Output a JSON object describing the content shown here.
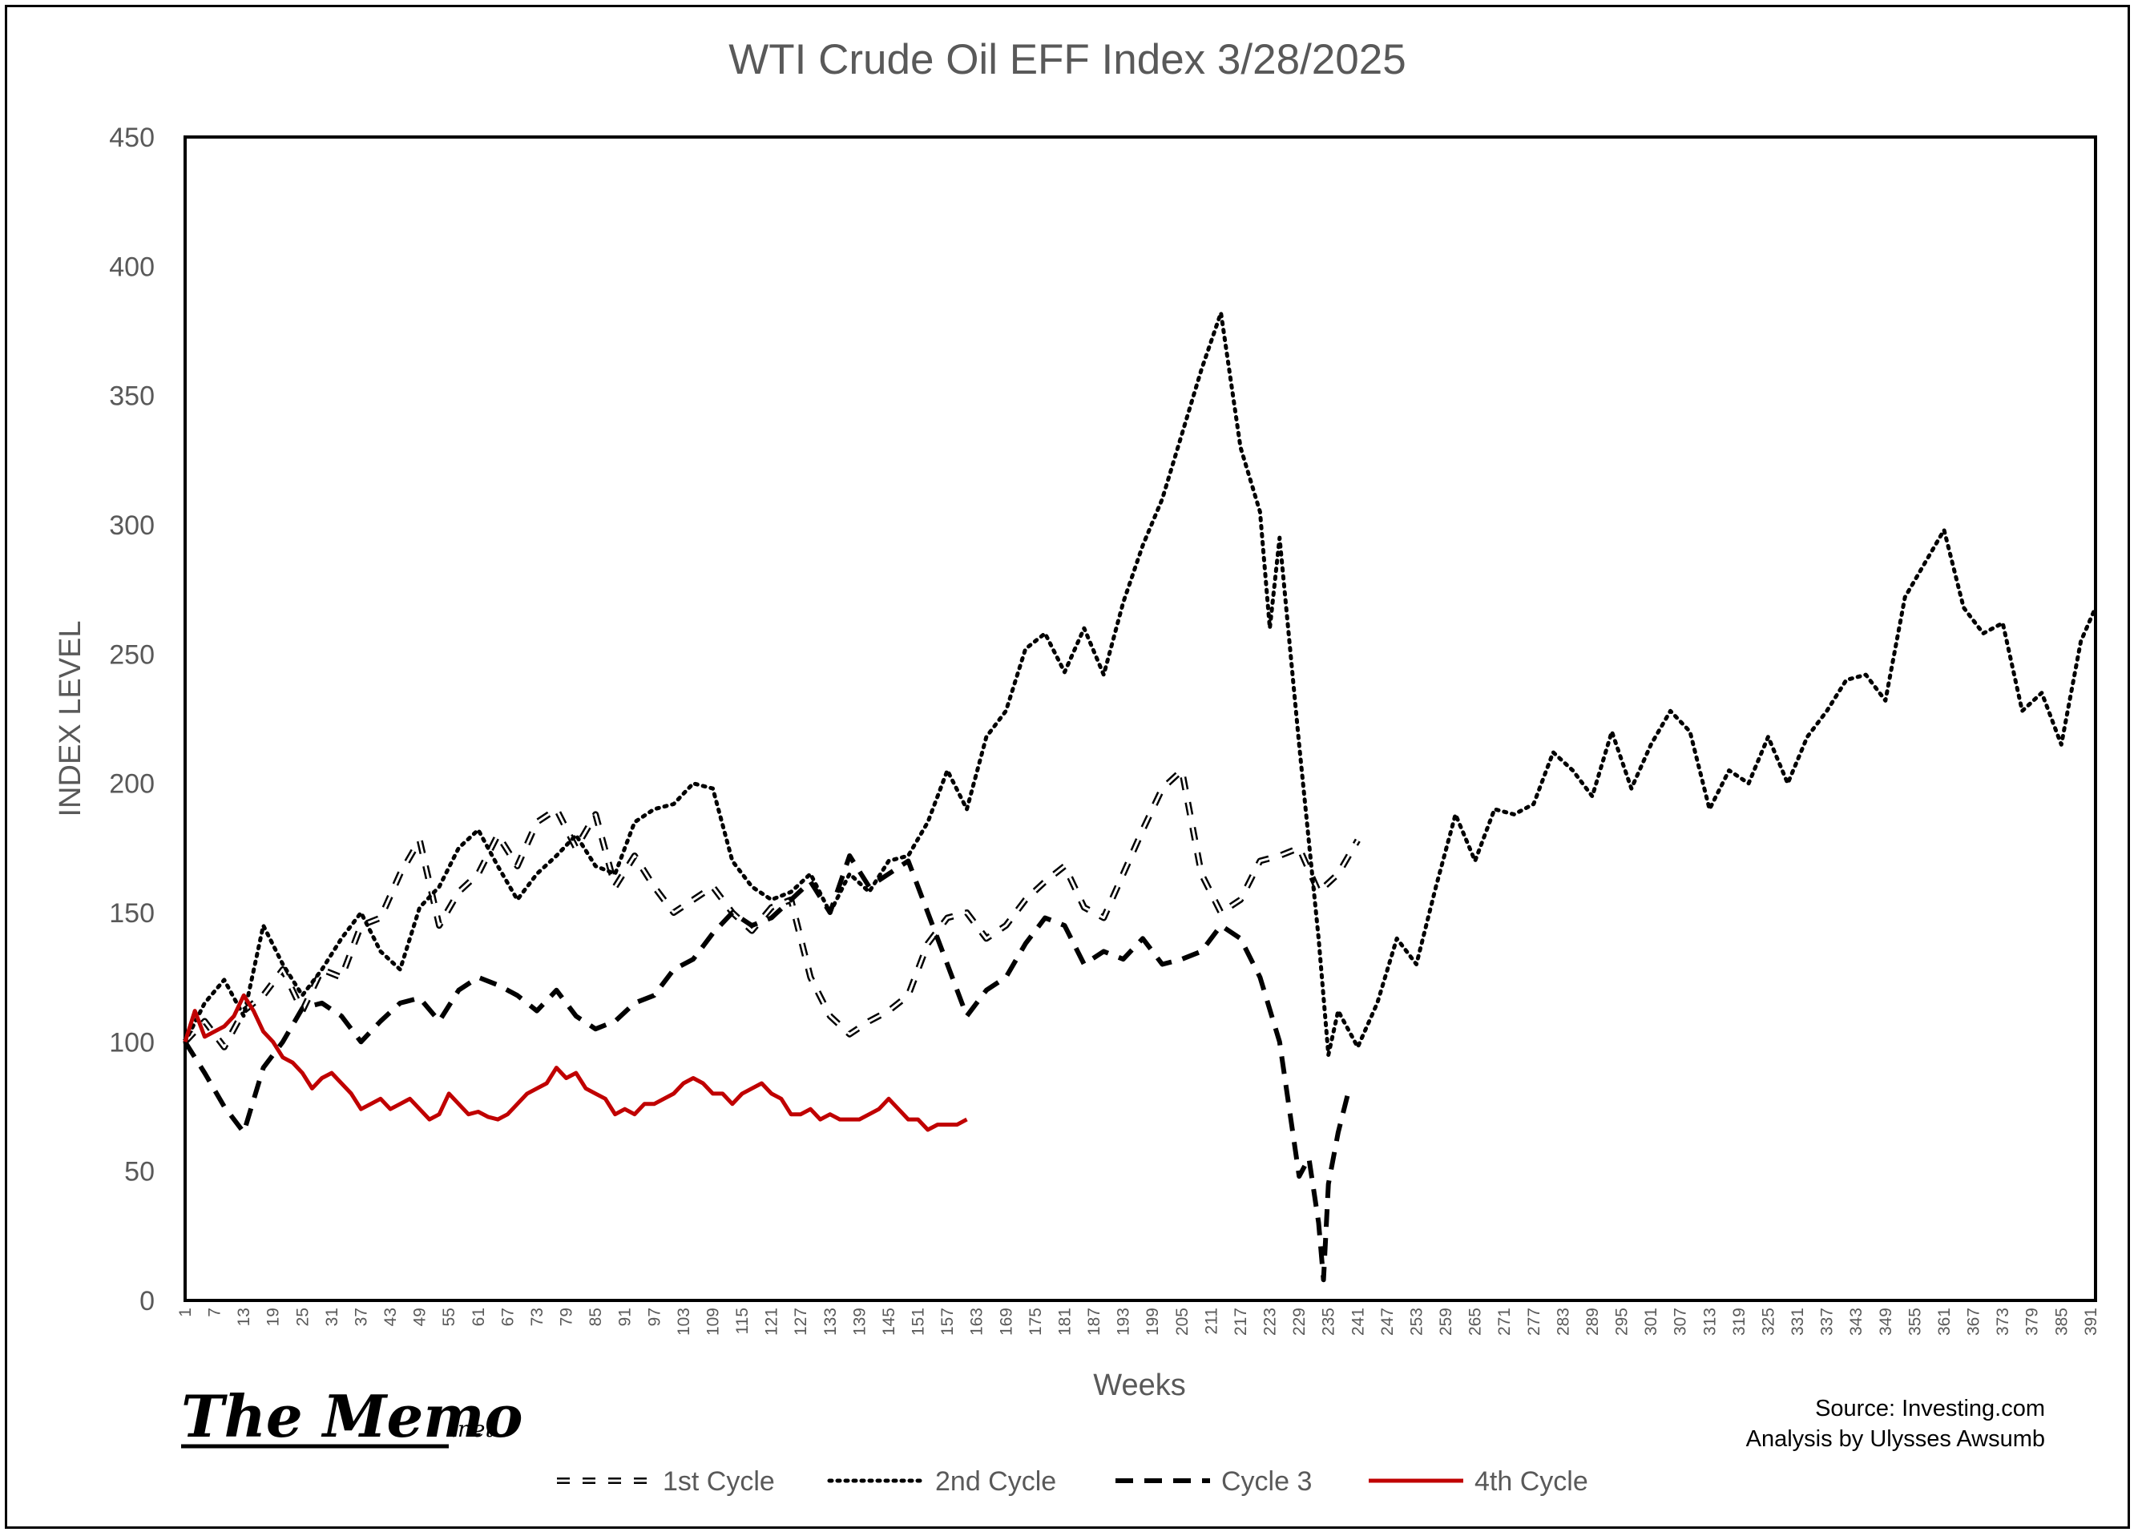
{
  "chart_data": {
    "type": "line",
    "title": "WTI Crude Oil EFF Index 3/28/2025",
    "xlabel": "Weeks",
    "ylabel": "INDEX LEVEL",
    "ylim": [
      0,
      450
    ],
    "xlim": [
      1,
      392
    ],
    "yticks": [
      0,
      50,
      100,
      150,
      200,
      250,
      300,
      350,
      400,
      450
    ],
    "xticks_start": 1,
    "xticks_step": 6,
    "xticks_end": 391,
    "grid": false,
    "legend_position": "bottom",
    "series": [
      {
        "name": "1st Cycle",
        "style": "double-dash",
        "color": "#000000",
        "x": [
          1,
          5,
          9,
          13,
          17,
          21,
          25,
          29,
          33,
          37,
          41,
          45,
          49,
          53,
          57,
          61,
          65,
          69,
          73,
          77,
          81,
          85,
          89,
          93,
          97,
          101,
          105,
          109,
          113,
          117,
          121,
          125,
          129,
          133,
          137,
          141,
          145,
          149,
          153,
          157,
          161,
          165,
          169,
          173,
          177,
          181,
          185,
          189,
          193,
          197,
          201,
          205,
          209,
          213,
          217,
          221,
          225,
          229,
          233,
          237,
          241
        ],
        "y": [
          100,
          108,
          98,
          112,
          118,
          128,
          112,
          128,
          125,
          145,
          148,
          165,
          178,
          145,
          158,
          165,
          180,
          168,
          185,
          190,
          175,
          188,
          160,
          172,
          160,
          150,
          155,
          160,
          150,
          143,
          152,
          155,
          125,
          110,
          103,
          108,
          112,
          118,
          138,
          148,
          150,
          140,
          145,
          155,
          162,
          168,
          152,
          148,
          165,
          182,
          198,
          205,
          165,
          150,
          155,
          170,
          172,
          175,
          158,
          165,
          178
        ]
      },
      {
        "name": "2nd Cycle",
        "style": "dotted",
        "color": "#000000",
        "x": [
          1,
          5,
          9,
          13,
          17,
          21,
          25,
          29,
          33,
          37,
          41,
          45,
          49,
          53,
          57,
          61,
          65,
          69,
          73,
          77,
          81,
          85,
          89,
          93,
          97,
          101,
          105,
          109,
          113,
          117,
          121,
          125,
          129,
          133,
          137,
          141,
          145,
          149,
          153,
          157,
          161,
          165,
          169,
          173,
          177,
          181,
          185,
          189,
          193,
          197,
          201,
          205,
          209,
          213,
          217,
          221,
          223,
          225,
          229,
          233,
          235,
          237,
          241,
          245,
          249,
          253,
          257,
          261,
          265,
          269,
          273,
          277,
          281,
          285,
          289,
          293,
          297,
          301,
          305,
          309,
          313,
          317,
          321,
          325,
          329,
          333,
          337,
          341,
          345,
          349,
          353,
          357,
          361,
          365,
          369,
          373,
          377,
          381,
          385,
          389,
          392
        ],
        "y": [
          100,
          115,
          124,
          110,
          145,
          130,
          118,
          128,
          140,
          150,
          135,
          128,
          152,
          160,
          175,
          182,
          168,
          155,
          165,
          172,
          180,
          168,
          165,
          185,
          190,
          192,
          200,
          198,
          170,
          160,
          155,
          158,
          165,
          150,
          165,
          158,
          170,
          172,
          185,
          205,
          190,
          218,
          228,
          252,
          258,
          243,
          260,
          242,
          270,
          292,
          310,
          335,
          360,
          382,
          330,
          305,
          260,
          295,
          215,
          140,
          95,
          112,
          98,
          115,
          140,
          130,
          160,
          188,
          170,
          190,
          188,
          192,
          212,
          205,
          195,
          220,
          198,
          215,
          228,
          220,
          190,
          205,
          200,
          218,
          200,
          218,
          228,
          240,
          242,
          232,
          272,
          285,
          298,
          268,
          258,
          262,
          228,
          235,
          215,
          255,
          268
        ]
      },
      {
        "name": "Cycle 3",
        "style": "dashed",
        "color": "#000000",
        "x": [
          1,
          5,
          9,
          13,
          17,
          21,
          25,
          29,
          33,
          37,
          41,
          45,
          49,
          53,
          57,
          61,
          65,
          69,
          73,
          77,
          81,
          85,
          89,
          93,
          97,
          101,
          105,
          109,
          113,
          117,
          121,
          125,
          129,
          133,
          137,
          141,
          145,
          149,
          153,
          157,
          161,
          165,
          169,
          173,
          177,
          181,
          185,
          189,
          193,
          197,
          201,
          205,
          209,
          213,
          217,
          221,
          225,
          229,
          231,
          233,
          234,
          235,
          237,
          239
        ],
        "y": [
          100,
          88,
          75,
          65,
          90,
          100,
          113,
          115,
          110,
          100,
          108,
          115,
          117,
          108,
          120,
          125,
          122,
          118,
          112,
          120,
          110,
          105,
          108,
          115,
          118,
          128,
          132,
          142,
          150,
          145,
          148,
          155,
          162,
          150,
          172,
          160,
          165,
          170,
          150,
          130,
          110,
          120,
          125,
          138,
          148,
          145,
          130,
          135,
          132,
          140,
          130,
          132,
          135,
          145,
          140,
          125,
          100,
          48,
          55,
          30,
          8,
          45,
          65,
          80
        ]
      },
      {
        "name": "4th Cycle",
        "style": "solid",
        "color": "#c00000",
        "x": [
          1,
          3,
          5,
          7,
          9,
          11,
          13,
          15,
          17,
          19,
          21,
          23,
          25,
          27,
          29,
          31,
          33,
          35,
          37,
          39,
          41,
          43,
          45,
          47,
          49,
          51,
          53,
          55,
          57,
          59,
          61,
          63,
          65,
          67,
          69,
          71,
          73,
          75,
          77,
          79,
          81,
          83,
          85,
          87,
          89,
          91,
          93,
          95,
          97,
          99,
          101,
          103,
          105,
          107,
          109,
          111,
          113,
          115,
          117,
          119,
          121,
          123,
          125,
          127,
          129,
          131,
          133,
          135,
          137,
          139,
          141,
          143,
          145,
          147,
          149,
          151,
          153,
          155,
          157,
          159,
          161
        ],
        "y": [
          100,
          112,
          102,
          104,
          106,
          110,
          118,
          112,
          104,
          100,
          94,
          92,
          88,
          82,
          86,
          88,
          84,
          80,
          74,
          76,
          78,
          74,
          76,
          78,
          74,
          70,
          72,
          80,
          76,
          72,
          73,
          71,
          70,
          72,
          76,
          80,
          82,
          84,
          90,
          86,
          88,
          82,
          80,
          78,
          72,
          74,
          72,
          76,
          76,
          78,
          80,
          84,
          86,
          84,
          80,
          80,
          76,
          80,
          82,
          84,
          80,
          78,
          72,
          72,
          74,
          70,
          72,
          70,
          70,
          70,
          72,
          74,
          78,
          74,
          70,
          70,
          66,
          68,
          68,
          68,
          70
        ]
      }
    ]
  },
  "credits": {
    "source": "Source: Investing.com",
    "analysis": "Analysis by Ulysses Awsumb"
  },
  "logo": {
    "main": "The Memo",
    "suffix": ".net"
  }
}
